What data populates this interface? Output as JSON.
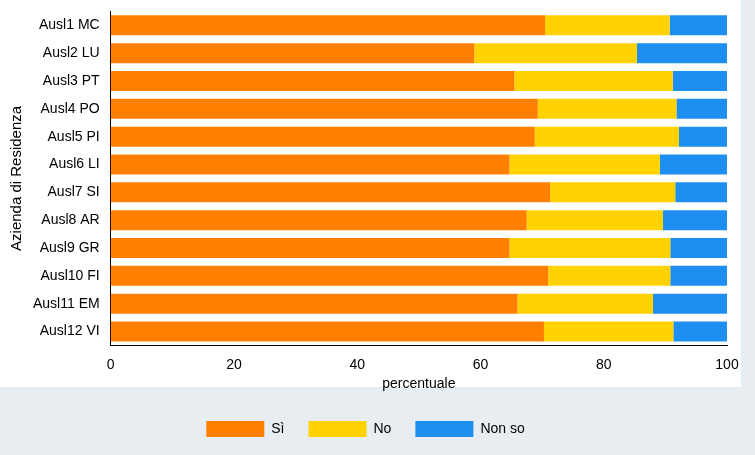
{
  "chart_data": {
    "type": "bar",
    "orientation": "horizontal",
    "stacked": true,
    "x_label": "percentuale",
    "y_label": "Azienda di Residenza",
    "categories": [
      "Ausl1 MC",
      "Ausl2 LU",
      "Ausl3 PT",
      "Ausl4 PO",
      "Ausl5 PI",
      "Ausl6 LI",
      "Ausl7 SI",
      "Ausl8 AR",
      "Ausl9 GR",
      "Ausl10 FI",
      "Ausl11 EM",
      "Ausl12 VI"
    ],
    "series": [
      {
        "name": "Sì",
        "color": "#ff8000",
        "values": [
          70.5,
          59.0,
          65.5,
          69.3,
          68.8,
          64.7,
          71.3,
          67.5,
          64.7,
          71.0,
          66.0,
          70.3
        ]
      },
      {
        "name": "No",
        "color": "#ffd200",
        "values": [
          20.2,
          26.4,
          25.7,
          22.5,
          23.4,
          24.4,
          20.3,
          22.1,
          26.1,
          19.8,
          22.0,
          21.0
        ]
      },
      {
        "name": "Non so",
        "color": "#1f8ef1",
        "values": [
          9.3,
          14.6,
          8.8,
          8.2,
          7.8,
          10.9,
          8.4,
          10.4,
          9.2,
          9.2,
          12.0,
          8.7
        ]
      }
    ],
    "xlim": [
      0,
      100
    ],
    "xticks": [
      0,
      20,
      40,
      60,
      80,
      100
    ],
    "grid": false,
    "legend": "bottom"
  }
}
